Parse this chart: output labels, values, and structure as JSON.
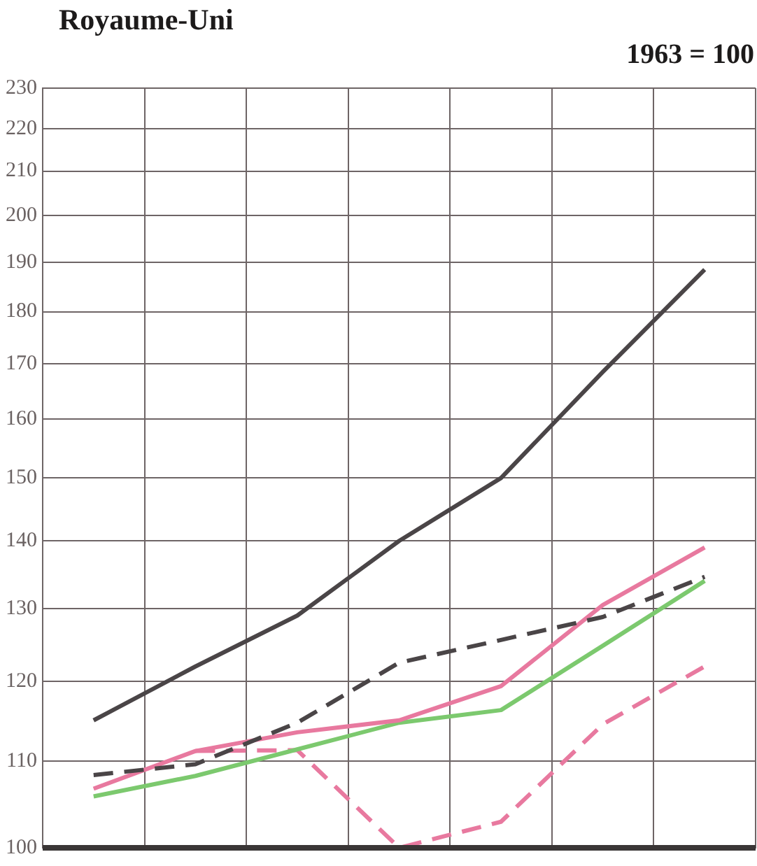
{
  "chart_data": {
    "type": "line",
    "title": "Royaume-Uni",
    "subtitle": "1963 = 100",
    "categories": [
      null,
      null,
      null,
      null,
      null,
      null,
      null
    ],
    "series": [
      {
        "color": "#4a4547",
        "values": [
          115,
          122,
          129,
          140,
          150,
          168.5,
          188.5
        ]
      },
      {
        "color": "#4a4547",
        "line_style": "dashed",
        "values": [
          108.3,
          109.6,
          114.7,
          122.5,
          125.6,
          128.8,
          134.6
        ]
      },
      {
        "color": "#e8799f",
        "values": [
          106.7,
          111.2,
          113.5,
          115,
          119.4,
          130.5,
          139
        ]
      },
      {
        "color": "#7cc96e",
        "values": [
          105.8,
          108.2,
          111.4,
          114.7,
          116.3,
          124.8,
          134
        ]
      },
      {
        "color": "#e8799f",
        "line_style": "dashed",
        "values": [
          null,
          111.2,
          111.3,
          100,
          102.9,
          114.5,
          122
        ]
      }
    ],
    "log": true,
    "ylim": [
      100,
      230
    ],
    "yticks": [
      100,
      110,
      120,
      130,
      140,
      150,
      160,
      170,
      180,
      190,
      200,
      210,
      220,
      230
    ],
    "grid": true,
    "legend": false,
    "marker": "none",
    "line_style": "solid",
    "tick_labels": "y"
  }
}
